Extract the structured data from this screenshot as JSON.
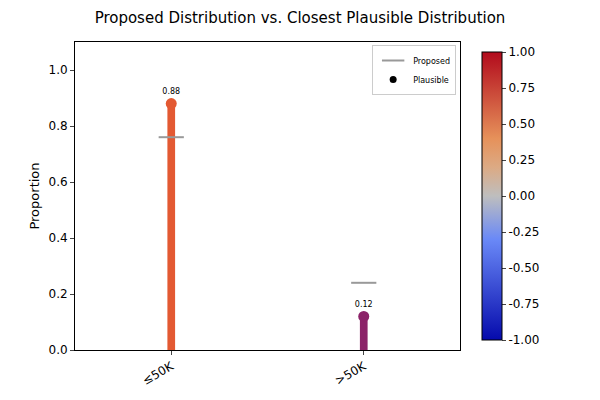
{
  "chart_data": {
    "type": "lollipop",
    "title": "Proposed Distribution vs. Closest Plausible Distribution",
    "y_label": "Proportion",
    "categories": [
      "≤50K",
      ">50K"
    ],
    "series": [
      {
        "name": "Proposed",
        "type": "scatter",
        "marker": "line",
        "color": "#999999",
        "values": [
          0.76,
          0.24
        ]
      },
      {
        "name": "Plausible",
        "type": "lollipop",
        "marker": "circle",
        "color": "#000000",
        "colors": [
          "#e35932",
          "#8c2369"
        ],
        "values": [
          0.88,
          0.12
        ],
        "data_labels": true
      }
    ],
    "ylim": [
      0,
      1.1
    ],
    "yticks": [
      {
        "value": 0,
        "label": "0.0"
      },
      {
        "value": 0.2,
        "label": "0.2"
      },
      {
        "value": 0.4,
        "label": "0.4"
      },
      {
        "value": 0.6,
        "label": "0.6"
      },
      {
        "value": 0.8,
        "label": "0.8"
      },
      {
        "value": 1,
        "label": "1.0"
      }
    ],
    "colorbar_range": [
      -1,
      1
    ],
    "colorbar_ticks": [
      {
        "value": -1,
        "label": "-1.00"
      },
      {
        "value": -0.75,
        "label": "-0.75"
      },
      {
        "value": -0.5,
        "label": "-0.50"
      },
      {
        "value": -0.25,
        "label": "-0.25"
      },
      {
        "value": 0,
        "label": "0.00"
      },
      {
        "value": 0.25,
        "label": "0.25"
      },
      {
        "value": 0.5,
        "label": "0.50"
      },
      {
        "value": 0.75,
        "label": "0.75"
      },
      {
        "value": 1,
        "label": "1.00"
      }
    ],
    "legend": "upper right",
    "grid": false
  }
}
